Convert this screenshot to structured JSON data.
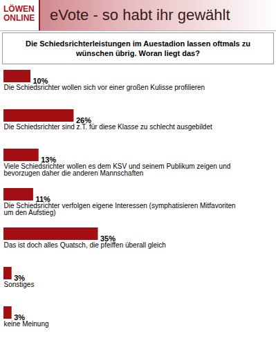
{
  "chart_data": {
    "type": "bar",
    "orientation": "horizontal",
    "title": "eVote - so habt ihr gewählt",
    "subtitle": "Die Schiedsrichterleistungen im Auestadion lassen oftmals zu wünschen übrig. Woran liegt das?",
    "annotations": [
      "LÖWEN ONLINE"
    ],
    "categories": [
      "Die Schiedsrichter wollen sich vor einer großen Kulisse profilieren",
      "Die Schiedsrichter sind z.T. für diese Klasse zu schlecht ausgebildet",
      "Viele Schiedsrichter wollen es dem KSV und seinem Publikum zeigen und bevorzugen daher die anderen Mannschaften",
      "Die Schiedsrichter verfolgen eigene Interessen (symphatisieren Mitfavoriten um den Aufstieg)",
      "Das ist doch alles Quatsch, die pfeiffen überall gleich",
      "Sonstiges",
      "keine Meinung"
    ],
    "values": [
      10,
      26,
      13,
      11,
      35,
      3,
      3
    ],
    "value_labels": [
      "10%",
      "26%",
      "13%",
      "11%",
      "35%",
      "3%",
      "3%"
    ],
    "data_labels": true,
    "color": "#a30f12",
    "xlim": [
      0,
      100
    ],
    "tick_labels": false
  }
}
